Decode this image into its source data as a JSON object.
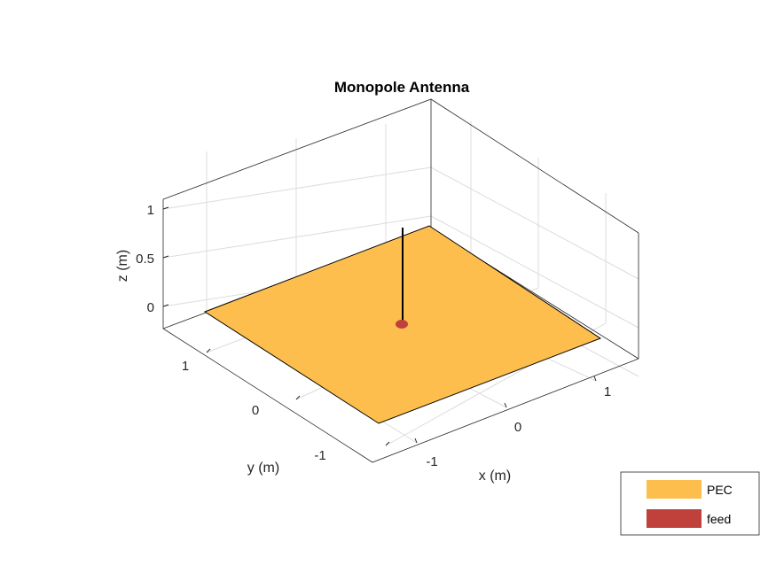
{
  "figure": {
    "title": "Monopole Antenna"
  },
  "axes": {
    "x": {
      "label": "x (m)",
      "ticks": [
        "-1",
        "0",
        "1"
      ]
    },
    "y": {
      "label": "y (m)",
      "ticks": [
        "-1",
        "0",
        "1"
      ]
    },
    "z": {
      "label": "z (m)",
      "ticks": [
        "0",
        "0.5",
        "1"
      ]
    }
  },
  "legend": {
    "placement": "bottom-right",
    "items": [
      {
        "label": "PEC",
        "color": "#fdbe4e"
      },
      {
        "label": "feed",
        "color": "#c0403b"
      }
    ]
  },
  "colors": {
    "ground_plane": "#fdbe4e",
    "feed": "#c0403b",
    "radiator": "#000000"
  }
}
